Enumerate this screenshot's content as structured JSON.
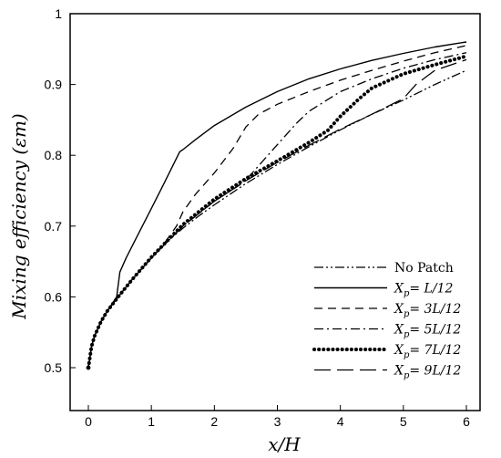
{
  "chart_data": {
    "type": "line",
    "title": "",
    "xlabel": "x/H",
    "ylabel": "Mixing efficiency (εm)",
    "xlim": [
      0,
      6
    ],
    "ylim": [
      0.5,
      1.0
    ],
    "xticks": [
      "0",
      "1",
      "2",
      "3",
      "4",
      "5",
      "6"
    ],
    "yticks": [
      "0.5",
      "0.6",
      "0.7",
      "0.8",
      "0.9",
      "1"
    ],
    "grid": false,
    "legend_position": "bottom-right",
    "series": [
      {
        "name": "No Patch",
        "style": "dash-dot-dot",
        "x": [
          0,
          0.05,
          0.1,
          0.2,
          0.3,
          0.5,
          0.7,
          1.0,
          1.25,
          1.5,
          1.75,
          2.0,
          2.5,
          3.0,
          3.5,
          4.0,
          4.5,
          5.0,
          5.5,
          6.0
        ],
        "y": [
          0.5,
          0.53,
          0.545,
          0.565,
          0.58,
          0.603,
          0.625,
          0.655,
          0.678,
          0.697,
          0.714,
          0.73,
          0.76,
          0.787,
          0.812,
          0.836,
          0.858,
          0.878,
          0.9,
          0.92
        ]
      },
      {
        "name": "Xp= L/12",
        "style": "solid",
        "x": [
          0,
          0.05,
          0.1,
          0.2,
          0.3,
          0.45,
          0.5,
          0.6,
          0.8,
          1.0,
          1.2,
          1.45,
          1.5,
          1.7,
          2.0,
          2.5,
          3.0,
          3.5,
          4.0,
          4.5,
          5.0,
          5.5,
          6.0
        ],
        "y": [
          0.5,
          0.53,
          0.545,
          0.565,
          0.58,
          0.6,
          0.635,
          0.655,
          0.69,
          0.725,
          0.76,
          0.805,
          0.808,
          0.822,
          0.842,
          0.868,
          0.89,
          0.908,
          0.922,
          0.934,
          0.944,
          0.953,
          0.96
        ]
      },
      {
        "name": "Xp= 3L/12",
        "style": "dashed",
        "x": [
          0,
          0.05,
          0.1,
          0.2,
          0.3,
          0.5,
          0.7,
          1.0,
          1.2,
          1.4,
          1.5,
          1.7,
          2.0,
          2.3,
          2.5,
          2.7,
          3.0,
          3.5,
          4.0,
          4.5,
          5.0,
          5.5,
          6.0
        ],
        "y": [
          0.5,
          0.53,
          0.545,
          0.565,
          0.58,
          0.603,
          0.625,
          0.655,
          0.675,
          0.7,
          0.72,
          0.745,
          0.775,
          0.81,
          0.84,
          0.858,
          0.872,
          0.89,
          0.906,
          0.92,
          0.933,
          0.945,
          0.955
        ]
      },
      {
        "name": "Xp= 5L/12",
        "style": "dash-dot",
        "x": [
          0,
          0.05,
          0.1,
          0.2,
          0.3,
          0.5,
          0.7,
          1.0,
          1.5,
          2.0,
          2.4,
          2.5,
          2.7,
          3.0,
          3.3,
          3.5,
          4.0,
          4.5,
          5.0,
          5.5,
          6.0
        ],
        "y": [
          0.5,
          0.53,
          0.545,
          0.565,
          0.58,
          0.603,
          0.625,
          0.655,
          0.7,
          0.735,
          0.758,
          0.765,
          0.785,
          0.815,
          0.845,
          0.862,
          0.89,
          0.908,
          0.923,
          0.935,
          0.945
        ]
      },
      {
        "name": "Xp= 7L/12",
        "style": "dotted",
        "x": [
          0,
          0.05,
          0.1,
          0.2,
          0.3,
          0.5,
          0.7,
          1.0,
          1.5,
          2.0,
          2.5,
          3.0,
          3.5,
          3.8,
          4.0,
          4.3,
          4.5,
          5.0,
          5.5,
          6.0
        ],
        "y": [
          0.5,
          0.53,
          0.545,
          0.565,
          0.58,
          0.603,
          0.625,
          0.656,
          0.702,
          0.738,
          0.767,
          0.792,
          0.818,
          0.835,
          0.855,
          0.88,
          0.895,
          0.915,
          0.928,
          0.94
        ]
      },
      {
        "name": "Xp= 9L/12",
        "style": "long-dash",
        "x": [
          0,
          0.05,
          0.1,
          0.2,
          0.3,
          0.5,
          0.7,
          1.0,
          1.5,
          2.0,
          2.5,
          3.0,
          3.5,
          4.0,
          4.5,
          5.0,
          5.2,
          5.5,
          6.0
        ],
        "y": [
          0.5,
          0.53,
          0.545,
          0.565,
          0.58,
          0.603,
          0.625,
          0.655,
          0.7,
          0.735,
          0.764,
          0.79,
          0.814,
          0.837,
          0.858,
          0.88,
          0.9,
          0.92,
          0.935
        ]
      }
    ],
    "legend": [
      {
        "name": "No Patch"
      },
      {
        "prefix": "X",
        "sub": "p",
        "rest": "= L/12"
      },
      {
        "prefix": "X",
        "sub": "p",
        "rest": "= 3L/12"
      },
      {
        "prefix": "X",
        "sub": "p",
        "rest": "= 5L/12"
      },
      {
        "prefix": "X",
        "sub": "p",
        "rest": "= 7L/12"
      },
      {
        "prefix": "X",
        "sub": "p",
        "rest": "= 9L/12"
      }
    ]
  }
}
